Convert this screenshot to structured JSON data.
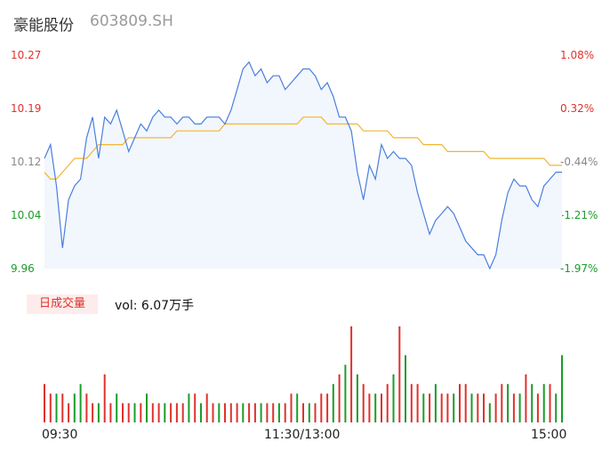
{
  "header": {
    "name": "豪能股份",
    "code": "603809.SH"
  },
  "colors": {
    "price": "#4a7fdd",
    "avg": "#f2b531",
    "up": "#e0312c",
    "down": "#1a9d2a",
    "flat": "#888888",
    "fill": "#f2f6fd"
  },
  "volume": {
    "badge": "日成交量",
    "text": "vol: 6.07万手"
  },
  "chart_data": {
    "type": "line",
    "prev_close": 10.15,
    "ylim": [
      9.96,
      10.27
    ],
    "yticks": [
      "10.27",
      "10.19",
      "10.12",
      "10.04",
      "9.96"
    ],
    "pct_ticks": [
      "1.08%",
      "0.32%",
      "-0.44%",
      "-1.21%",
      "-1.97%"
    ],
    "xticks": [
      "09:30",
      "11:30/13:00",
      "15:00"
    ],
    "price": [
      10.12,
      10.14,
      10.08,
      9.99,
      10.06,
      10.08,
      10.09,
      10.15,
      10.18,
      10.12,
      10.18,
      10.17,
      10.19,
      10.16,
      10.13,
      10.15,
      10.17,
      10.16,
      10.18,
      10.19,
      10.18,
      10.18,
      10.17,
      10.18,
      10.18,
      10.17,
      10.17,
      10.18,
      10.18,
      10.18,
      10.17,
      10.19,
      10.22,
      10.25,
      10.26,
      10.24,
      10.25,
      10.23,
      10.24,
      10.24,
      10.22,
      10.23,
      10.24,
      10.25,
      10.25,
      10.24,
      10.22,
      10.23,
      10.21,
      10.18,
      10.18,
      10.16,
      10.1,
      10.06,
      10.11,
      10.09,
      10.14,
      10.12,
      10.13,
      10.12,
      10.12,
      10.11,
      10.07,
      10.04,
      10.01,
      10.03,
      10.04,
      10.05,
      10.04,
      10.02,
      10.0,
      9.99,
      9.98,
      9.98,
      9.96,
      9.98,
      10.03,
      10.07,
      10.09,
      10.08,
      10.08,
      10.06,
      10.05,
      10.08,
      10.09,
      10.1,
      10.1
    ],
    "avg": [
      10.1,
      10.09,
      10.09,
      10.1,
      10.11,
      10.12,
      10.12,
      10.12,
      10.13,
      10.14,
      10.14,
      10.14,
      10.14,
      10.14,
      10.15,
      10.15,
      10.15,
      10.15,
      10.15,
      10.15,
      10.15,
      10.15,
      10.16,
      10.16,
      10.16,
      10.16,
      10.16,
      10.16,
      10.16,
      10.16,
      10.17,
      10.17,
      10.17,
      10.17,
      10.17,
      10.17,
      10.17,
      10.17,
      10.17,
      10.17,
      10.17,
      10.17,
      10.17,
      10.18,
      10.18,
      10.18,
      10.18,
      10.17,
      10.17,
      10.17,
      10.17,
      10.17,
      10.17,
      10.16,
      10.16,
      10.16,
      10.16,
      10.16,
      10.15,
      10.15,
      10.15,
      10.15,
      10.15,
      10.14,
      10.14,
      10.14,
      10.14,
      10.13,
      10.13,
      10.13,
      10.13,
      10.13,
      10.13,
      10.13,
      10.12,
      10.12,
      10.12,
      10.12,
      10.12,
      10.12,
      10.12,
      10.12,
      10.12,
      10.12,
      10.11,
      10.11,
      10.11
    ],
    "vol_dir": [
      "up",
      "up",
      "down",
      "up",
      "up",
      "down",
      "down",
      "up",
      "up",
      "down",
      "up",
      "up",
      "down",
      "up",
      "up",
      "down",
      "up",
      "down",
      "up",
      "up",
      "down",
      "up",
      "up",
      "up",
      "down",
      "up",
      "down",
      "up",
      "up",
      "down",
      "up",
      "up",
      "up",
      "down",
      "up",
      "up",
      "down",
      "up",
      "up",
      "down",
      "up",
      "up",
      "down",
      "up",
      "down",
      "up",
      "up",
      "up",
      "down",
      "up",
      "down",
      "up",
      "down",
      "up",
      "up",
      "down",
      "up",
      "up",
      "down",
      "up",
      "down",
      "up",
      "up",
      "down",
      "up",
      "down",
      "up",
      "up",
      "down",
      "up",
      "up",
      "down",
      "up",
      "up",
      "down",
      "up",
      "up",
      "down",
      "up",
      "down",
      "up",
      "down",
      "up",
      "down",
      "up",
      "down",
      "down"
    ],
    "vol": [
      4,
      3,
      3,
      3,
      2,
      3,
      4,
      3,
      2,
      2,
      5,
      2,
      3,
      2,
      2,
      2,
      2,
      3,
      2,
      2,
      2,
      2,
      2,
      2,
      3,
      3,
      2,
      3,
      2,
      2,
      2,
      2,
      2,
      2,
      2,
      2,
      2,
      2,
      2,
      2,
      2,
      3,
      3,
      2,
      2,
      2,
      3,
      3,
      4,
      5,
      6,
      10,
      5,
      4,
      3,
      3,
      3,
      4,
      5,
      10,
      7,
      4,
      4,
      3,
      3,
      4,
      3,
      3,
      3,
      4,
      4,
      3,
      3,
      3,
      2,
      3,
      4,
      4,
      3,
      3,
      5,
      4,
      3,
      4,
      4,
      3,
      7
    ]
  }
}
